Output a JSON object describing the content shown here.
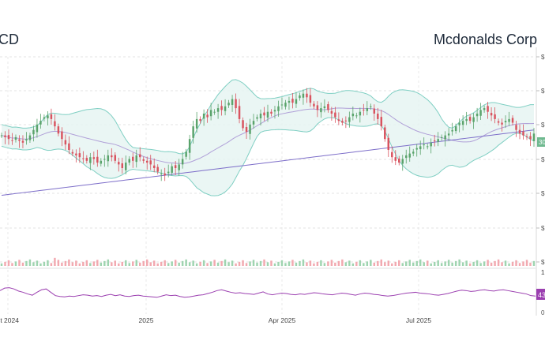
{
  "header": {
    "ticker": "CD",
    "company": "Mcdonalds Corp"
  },
  "chart_data": [
    {
      "type": "candlestick",
      "title": "Mcdonalds Corp",
      "x_tick_labels": [
        "ct 2024",
        "2025",
        "Apr 2025",
        "Jul 2025"
      ],
      "y_tick_labels": [
        "$",
        "$",
        "$",
        "$",
        "$",
        "$",
        "$"
      ],
      "price_labels": [
        {
          "text": "30",
          "color": "#6fb98f"
        }
      ],
      "ylim": [
        0,
        100
      ],
      "indicators": [
        "bollinger-bands",
        "sma-50",
        "sma-200"
      ],
      "ohlc_close": [
        58,
        57,
        56,
        55,
        57,
        55,
        54,
        56,
        58,
        61,
        64,
        66,
        68,
        69,
        67,
        63,
        59,
        56,
        53,
        50,
        48,
        47,
        46,
        45,
        44,
        46,
        45,
        43,
        44,
        45,
        47,
        46,
        44,
        42,
        40,
        43,
        45,
        44,
        47,
        46,
        44,
        43,
        42,
        40,
        38,
        37,
        36,
        38,
        41,
        40,
        42,
        45,
        49,
        56,
        63,
        67,
        66,
        70,
        68,
        72,
        71,
        73,
        72,
        74,
        76,
        78,
        73,
        67,
        62,
        60,
        64,
        66,
        68,
        70,
        69,
        71,
        70,
        72,
        74,
        75,
        76,
        77,
        76,
        78,
        80,
        81,
        79,
        76,
        74,
        72,
        73,
        74,
        72,
        70,
        68,
        66,
        65,
        66,
        68,
        70,
        69,
        71,
        72,
        73,
        74,
        70,
        67,
        63,
        56,
        50,
        46,
        44,
        43,
        45,
        47,
        48,
        49,
        51,
        52,
        53,
        52,
        54,
        55,
        56,
        57,
        58,
        59,
        61,
        63,
        65,
        66,
        67,
        66,
        68,
        70,
        72,
        73,
        71,
        69,
        67,
        65,
        64,
        66,
        67,
        65,
        61,
        59,
        58,
        57,
        56,
        59
      ],
      "colors": {
        "up": "#5aa36b",
        "down": "#d9535f",
        "band_fill": "#e5f4f1",
        "band_line": "#7fcfc3",
        "sma_short": "#b0a0d8",
        "sma_long": "#7d6ec9"
      }
    },
    {
      "type": "bar",
      "name": "volume",
      "colors": {
        "up": "#9fd4b0",
        "down": "#f2a9b0"
      },
      "y_tick_labels": [
        "1"
      ]
    },
    {
      "type": "line",
      "name": "rsi",
      "x_tick_labels": [
        "ct 2024",
        "2025",
        "Apr 2025",
        "Jul 2025"
      ],
      "y_tick_labels": [
        "1",
        "0"
      ],
      "last_value_label": "43",
      "ylim": [
        0,
        100
      ],
      "values": [
        56,
        62,
        63,
        60,
        55,
        52,
        48,
        45,
        52,
        58,
        60,
        52,
        44,
        42,
        41,
        43,
        42,
        44,
        46,
        45,
        43,
        44,
        42,
        45,
        47,
        44,
        46,
        43,
        42,
        44,
        45,
        43,
        42,
        41,
        40,
        43,
        46,
        44,
        45,
        42,
        40,
        41,
        43,
        45,
        46,
        49,
        52,
        56,
        58,
        55,
        52,
        50,
        51,
        49,
        48,
        47,
        50,
        53,
        48,
        46,
        48,
        50,
        49,
        47,
        46,
        48,
        47,
        49,
        51,
        50,
        48,
        47,
        46,
        48,
        50,
        49,
        47,
        45,
        48,
        50,
        49,
        47,
        46,
        44,
        43,
        44,
        46,
        48,
        50,
        51,
        52,
        50,
        49,
        48,
        46,
        45,
        47,
        49,
        52,
        55,
        57,
        56,
        54,
        55,
        57,
        58,
        56,
        55,
        57,
        58,
        56,
        54,
        52,
        50,
        48,
        44,
        43
      ],
      "color": "#9b3fb0"
    }
  ]
}
